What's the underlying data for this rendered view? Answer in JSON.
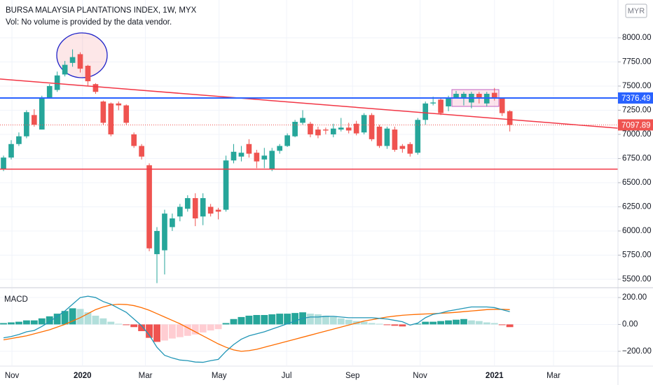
{
  "chart_data": [
    {
      "type": "candlestick",
      "title": "BURSA MALAYSIA PLANTATIONS INDEX, 1W, MYX",
      "subtitle": "Vol: No volume is provided by the data vendor.",
      "currency": "MYR",
      "x": [
        0,
        1,
        2,
        3,
        4,
        5,
        6,
        7,
        8,
        9,
        10,
        11,
        12,
        13,
        14,
        15,
        16,
        17,
        18,
        19,
        20,
        21,
        22,
        23,
        24,
        25,
        26,
        27,
        28,
        29,
        30,
        31,
        32,
        33,
        34,
        35,
        36,
        37,
        38,
        39,
        40,
        41,
        42,
        43,
        44,
        45,
        46,
        47,
        48,
        49,
        50,
        51,
        52,
        53,
        54,
        55,
        56,
        57,
        58,
        59,
        60,
        61,
        62,
        63,
        64,
        65,
        66
      ],
      "open": [
        6640,
        6760,
        6900,
        6980,
        7200,
        7050,
        7380,
        7460,
        7620,
        7740,
        7830,
        7710,
        7520,
        7340,
        7320,
        7320,
        7300,
        7000,
        6880,
        6680,
        5760,
        5800,
        6040,
        6150,
        6230,
        6340,
        6150,
        6250,
        6220,
        6220,
        6730,
        6770,
        6900,
        6810,
        6740,
        6640,
        6830,
        6880,
        6980,
        7120,
        7110,
        7050,
        7050,
        7000,
        7050,
        7070,
        7110,
        7020,
        7200,
        7080,
        6880,
        7050,
        6880,
        6900,
        6810,
        7150,
        7320,
        7360,
        7290,
        7380,
        7380,
        7330,
        7420,
        7320,
        7430,
        7370,
        7240
      ],
      "high": [
        6780,
        6940,
        7020,
        7250,
        7260,
        7400,
        7520,
        7650,
        7760,
        7880,
        7850,
        7720,
        7530,
        7350,
        7330,
        7340,
        7310,
        7020,
        6900,
        6700,
        6040,
        6220,
        6180,
        6280,
        6370,
        6390,
        6390,
        6280,
        6240,
        6780,
        6900,
        6880,
        6950,
        6840,
        6860,
        6860,
        6900,
        7010,
        7150,
        7250,
        7130,
        7080,
        7070,
        7110,
        7170,
        7120,
        7140,
        7220,
        7220,
        7100,
        7080,
        7080,
        6900,
        6920,
        7170,
        7340,
        7390,
        7380,
        7400,
        7450,
        7440,
        7440,
        7440,
        7440,
        7480,
        7380,
        7250
      ],
      "low": [
        6620,
        6740,
        6880,
        6960,
        7080,
        7050,
        7370,
        7440,
        7600,
        7700,
        7640,
        7500,
        7420,
        7100,
        6980,
        7250,
        7100,
        6860,
        6740,
        5790,
        5460,
        5550,
        6000,
        6100,
        6200,
        6050,
        6060,
        6150,
        6120,
        6200,
        6700,
        6720,
        6760,
        6650,
        6650,
        6620,
        6800,
        6870,
        6970,
        7100,
        6970,
        6960,
        7000,
        6970,
        7030,
        7010,
        6990,
        7000,
        6930,
        6860,
        6850,
        6820,
        6810,
        6770,
        6790,
        7100,
        7300,
        7200,
        7240,
        7370,
        7300,
        7270,
        7320,
        7290,
        7350,
        7190,
        7030
      ],
      "close": [
        6760,
        6900,
        6980,
        7230,
        7100,
        7380,
        7500,
        7610,
        7720,
        7800,
        7680,
        7550,
        7440,
        7120,
        7000,
        7300,
        7120,
        6880,
        6770,
        5820,
        6000,
        6180,
        6130,
        6250,
        6340,
        6130,
        6340,
        6180,
        6200,
        6730,
        6820,
        6810,
        6800,
        6720,
        6780,
        6830,
        6880,
        6990,
        7130,
        7170,
        7000,
        6990,
        7040,
        7060,
        7070,
        7040,
        7010,
        7200,
        6950,
        6880,
        7060,
        6840,
        6850,
        6800,
        7150,
        7320,
        7330,
        7220,
        7370,
        7420,
        7420,
        7420,
        7370,
        7420,
        7380,
        7220,
        7097.89
      ],
      "up_color": "#26a69a",
      "down_color": "#ef5350",
      "xlim": [
        -0.46,
        80.1
      ],
      "ylim": [
        5420,
        8391
      ],
      "yticks": [
        {
          "value": 5500,
          "label": "5500.00"
        },
        {
          "value": 5750,
          "label": "5750.00"
        },
        {
          "value": 6000,
          "label": "6000.00"
        },
        {
          "value": 6250,
          "label": "6250.00"
        },
        {
          "value": 6500,
          "label": "6500.00"
        },
        {
          "value": 6750,
          "label": "6750.00"
        },
        {
          "value": 7000,
          "label": "7000.00"
        },
        {
          "value": 7250,
          "label": "7250.00"
        },
        {
          "value": 7500,
          "label": "7500.00"
        },
        {
          "value": 7750,
          "label": "7750.00"
        },
        {
          "value": 8000,
          "label": "8000.00"
        }
      ],
      "grid": true,
      "price_line": {
        "value": 7376.49,
        "color": "#2962ff"
      },
      "support_line": {
        "value": 6640,
        "color": "#f23645"
      },
      "trendline": {
        "x": [
          0,
          80
        ],
        "y": [
          7570,
          7065
        ],
        "color": "#f23645"
      }
    },
    {
      "type": "macd",
      "title": "MACD",
      "histogram": [
        10,
        15,
        20,
        30,
        30,
        45,
        60,
        80,
        100,
        120,
        115,
        90,
        65,
        45,
        20,
        5,
        -5,
        -20,
        -50,
        -100,
        -130,
        -120,
        -105,
        -95,
        -85,
        -75,
        -60,
        -45,
        -35,
        10,
        40,
        55,
        65,
        70,
        70,
        75,
        80,
        80,
        85,
        90,
        80,
        75,
        65,
        55,
        45,
        35,
        25,
        20,
        10,
        5,
        -5,
        -10,
        -15,
        -5,
        5,
        20,
        20,
        25,
        30,
        35,
        40,
        30,
        25,
        15,
        10,
        -5,
        -20
      ],
      "macd": [
        -100,
        -90,
        -75,
        -55,
        -45,
        -15,
        20,
        60,
        100,
        150,
        200,
        210,
        200,
        170,
        150,
        120,
        90,
        40,
        -10,
        -80,
        -170,
        -230,
        -250,
        -265,
        -270,
        -280,
        -282,
        -270,
        -260,
        -200,
        -150,
        -110,
        -85,
        -70,
        -55,
        -35,
        -15,
        5,
        25,
        45,
        55,
        55,
        60,
        60,
        55,
        50,
        50,
        50,
        50,
        45,
        40,
        30,
        20,
        -5,
        10,
        50,
        75,
        85,
        100,
        110,
        120,
        130,
        130,
        130,
        125,
        110,
        95
      ],
      "signal": [
        -115,
        -105,
        -95,
        -85,
        -70,
        -55,
        -40,
        -20,
        0,
        25,
        50,
        80,
        110,
        130,
        145,
        150,
        148,
        140,
        125,
        105,
        80,
        55,
        30,
        5,
        -25,
        -55,
        -85,
        -115,
        -145,
        -170,
        -190,
        -200,
        -195,
        -185,
        -170,
        -155,
        -140,
        -125,
        -110,
        -95,
        -80,
        -65,
        -50,
        -35,
        -20,
        -5,
        10,
        25,
        35,
        45,
        55,
        62,
        68,
        72,
        75,
        78,
        80,
        83,
        86,
        90,
        95,
        100,
        105,
        110,
        112,
        112,
        110
      ],
      "colors": {
        "grow_above": "#26a69a",
        "fall_above": "#b2dfdb",
        "grow_below": "#ffcdd2",
        "fall_below": "#ef5350",
        "macd": "#2196b6",
        "signal": "#ff6d00"
      },
      "ylim": [
        -305,
        268
      ],
      "yticks": [
        {
          "value": -200,
          "label": "−200.00"
        },
        {
          "value": 0,
          "label": "0.00"
        },
        {
          "value": 200,
          "label": "200.00"
        }
      ],
      "xticks": [
        {
          "value": 1.1,
          "label": "Nov"
        },
        {
          "value": 10.3,
          "label": "2020"
        },
        {
          "value": 18.5,
          "label": "Mar"
        },
        {
          "value": 28.1,
          "label": "May"
        },
        {
          "value": 36.9,
          "label": "Jul"
        },
        {
          "value": 45.5,
          "label": "Sep"
        },
        {
          "value": 54.3,
          "label": "Nov"
        },
        {
          "value": 64,
          "label": "2021"
        },
        {
          "value": 71.7,
          "label": "Mar"
        }
      ]
    }
  ]
}
